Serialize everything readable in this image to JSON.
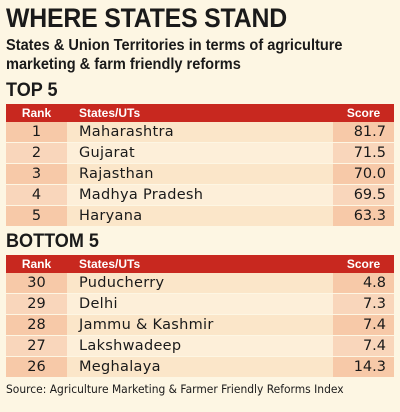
{
  "title": "WHERE STATES STAND",
  "subtitle": "States & Union Territories in terms of agriculture marketing & farm friendly reforms",
  "source": "Source: Agriculture Marketing & Farmer Friendly Reforms Index",
  "columns": {
    "rank": "Rank",
    "state": "States/UTs",
    "score": "Score"
  },
  "chart_data": [
    {
      "type": "table",
      "title": "TOP 5",
      "columns": [
        "Rank",
        "States/UTs",
        "Score"
      ],
      "rows": [
        {
          "rank": "1",
          "state": "Maharashtra",
          "score": "81.7"
        },
        {
          "rank": "2",
          "state": "Gujarat",
          "score": "71.5"
        },
        {
          "rank": "3",
          "state": "Rajasthan",
          "score": "70.0"
        },
        {
          "rank": "4",
          "state": "Madhya Pradesh",
          "score": "69.5"
        },
        {
          "rank": "5",
          "state": "Haryana",
          "score": "63.3"
        }
      ]
    },
    {
      "type": "table",
      "title": "BOTTOM 5",
      "columns": [
        "Rank",
        "States/UTs",
        "Score"
      ],
      "rows": [
        {
          "rank": "30",
          "state": "Puducherry",
          "score": "4.8"
        },
        {
          "rank": "29",
          "state": "Delhi",
          "score": "7.3"
        },
        {
          "rank": "28",
          "state": "Jammu & Kashmir",
          "score": "7.4"
        },
        {
          "rank": "27",
          "state": "Lakshwadeep",
          "score": "7.4"
        },
        {
          "rank": "26",
          "state": "Meghalaya",
          "score": "14.3"
        }
      ]
    }
  ],
  "colors": {
    "header": "#c8281f",
    "background": "#fdf6e3",
    "cell_light": "#fbe6c9",
    "cell_dark": "#f7c9a8"
  }
}
